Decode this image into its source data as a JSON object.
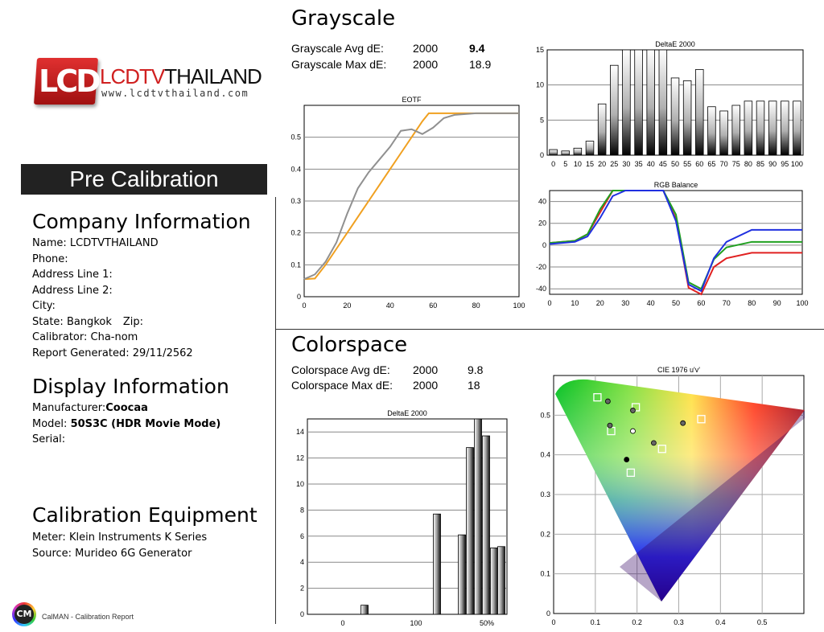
{
  "brand": {
    "logo_letters": "LCD",
    "name_part1": "LCDTV",
    "name_part2": "THAILAND",
    "url": "www.lcdtvthailand.com"
  },
  "banner": "Pre Calibration",
  "company": {
    "heading": "Company Information",
    "rows": [
      {
        "label": "Name:",
        "value": "LCDTVTHAILAND"
      },
      {
        "label": "Phone:",
        "value": ""
      },
      {
        "label": "Address Line 1:",
        "value": ""
      },
      {
        "label": "Address Line 2:",
        "value": ""
      },
      {
        "label": "City:",
        "value": ""
      },
      {
        "label": "State:",
        "value": "Bangkok",
        "label2": "Zip:",
        "value2": ""
      },
      {
        "label": "Calibrator:",
        "value": "Cha-nom"
      },
      {
        "label": "Report Generated:",
        "value": "29/11/2562"
      }
    ]
  },
  "display": {
    "heading": "Display Information",
    "manufacturer_label": "Manufacturer:",
    "manufacturer": "Coocaa",
    "model_label": "Model:",
    "model": "50S3C (HDR Movie Mode)",
    "serial_label": "Serial:",
    "serial": ""
  },
  "equipment": {
    "heading": "Calibration Equipment",
    "meter_label": "Meter:",
    "meter": "Klein Instruments K Series",
    "source_label": "Source:",
    "source": "Murideo 6G Generator"
  },
  "footer": {
    "logo_letters": "CM",
    "text": "CalMAN - Calibration Report"
  },
  "grayscale": {
    "heading": "Grayscale",
    "avg_label": "Grayscale Avg dE:",
    "avg_std": "2000",
    "avg_value": "9.4",
    "max_label": "Grayscale Max dE:",
    "max_std": "2000",
    "max_value": "18.9"
  },
  "colorspace": {
    "heading": "Colorspace",
    "avg_label": "Colorspace Avg dE:",
    "avg_std": "2000",
    "avg_value": "9.8",
    "max_label": "Colorspace Max dE:",
    "max_std": "2000",
    "max_value": "18"
  },
  "chart_data": [
    {
      "id": "eotf",
      "type": "line",
      "title": "EOTF",
      "xlim": [
        0,
        100
      ],
      "ylim": [
        0,
        0.6
      ],
      "xticks": [
        "0",
        "20",
        "40",
        "60",
        "80",
        "100"
      ],
      "yticks": [
        "0",
        "0.1",
        "0.2",
        "0.3",
        "0.4",
        "0.5"
      ],
      "series": [
        {
          "color": "#f0a020",
          "x": [
            0,
            5,
            10,
            15,
            20,
            25,
            30,
            35,
            40,
            45,
            50,
            55,
            58,
            60,
            65,
            70,
            80,
            90,
            100
          ],
          "y": [
            0.055,
            0.057,
            0.1,
            0.15,
            0.2,
            0.25,
            0.3,
            0.35,
            0.4,
            0.45,
            0.5,
            0.55,
            0.575,
            0.575,
            0.575,
            0.575,
            0.575,
            0.575,
            0.575
          ]
        },
        {
          "color": "#909090",
          "x": [
            0,
            5,
            10,
            15,
            20,
            25,
            30,
            35,
            40,
            45,
            50,
            55,
            60,
            65,
            70,
            80,
            90,
            100
          ],
          "y": [
            0.055,
            0.07,
            0.11,
            0.17,
            0.26,
            0.34,
            0.39,
            0.43,
            0.47,
            0.52,
            0.525,
            0.51,
            0.53,
            0.56,
            0.57,
            0.575,
            0.575,
            0.575
          ]
        }
      ]
    },
    {
      "id": "gray_de",
      "type": "bar",
      "title": "DeltaE 2000",
      "categories": [
        "0",
        "5",
        "10",
        "15",
        "20",
        "25",
        "30",
        "35",
        "40",
        "45",
        "50",
        "55",
        "60",
        "65",
        "70",
        "75",
        "80",
        "85",
        "90",
        "95",
        "100"
      ],
      "values": [
        0.8,
        0.6,
        1.0,
        2.0,
        7.3,
        12.8,
        15.0,
        15.0,
        15.0,
        15.0,
        11.0,
        10.6,
        12.2,
        6.9,
        6.3,
        7.1,
        7.7,
        7.7,
        7.7,
        7.7,
        7.7
      ],
      "ylim": [
        0,
        15
      ],
      "yticks": [
        "0",
        "5",
        "10",
        "15"
      ]
    },
    {
      "id": "rgb",
      "type": "line",
      "title": "RGB Balance",
      "xlim": [
        0,
        100
      ],
      "ylim": [
        -45,
        50
      ],
      "xticks": [
        "0",
        "10",
        "20",
        "30",
        "40",
        "50",
        "60",
        "70",
        "80",
        "90",
        "100"
      ],
      "yticks": [
        "-40",
        "-20",
        "0",
        "20",
        "40"
      ],
      "series": [
        {
          "color": "#e02020",
          "x": [
            0,
            10,
            15,
            20,
            25,
            30,
            40,
            45,
            50,
            55,
            60,
            65,
            70,
            80,
            90,
            100
          ],
          "y": [
            2,
            4,
            10,
            30,
            50,
            50,
            50,
            50,
            24,
            -39,
            -46,
            -20,
            -12,
            -7,
            -7,
            -7
          ]
        },
        {
          "color": "#20a020",
          "x": [
            0,
            10,
            15,
            20,
            25,
            30,
            40,
            45,
            50,
            55,
            60,
            65,
            70,
            80,
            90,
            100
          ],
          "y": [
            2,
            4,
            10,
            33,
            50,
            50,
            50,
            50,
            28,
            -34,
            -40,
            -13,
            -2,
            3,
            3,
            3
          ]
        },
        {
          "color": "#2030e0",
          "x": [
            0,
            10,
            15,
            20,
            25,
            30,
            40,
            45,
            50,
            55,
            60,
            65,
            70,
            80,
            90,
            100
          ],
          "y": [
            1,
            3,
            8,
            25,
            45,
            50,
            50,
            50,
            22,
            -36,
            -42,
            -12,
            3,
            14,
            14,
            14
          ]
        }
      ]
    },
    {
      "id": "color_de",
      "type": "bar",
      "title": "DeltaE 2000",
      "ylim": [
        0,
        15
      ],
      "yticks": [
        "0",
        "2",
        "4",
        "6",
        "8",
        "10",
        "12",
        "14"
      ],
      "xticks": [
        "0",
        "100",
        "50%"
      ],
      "values": [
        0.7,
        7.7,
        6.1,
        12.8,
        15.0,
        13.7,
        5.1,
        5.2
      ]
    },
    {
      "id": "cie",
      "type": "scatter",
      "title": "CIE 1976 u'v'",
      "xlim": [
        0,
        0.6
      ],
      "ylim": [
        0,
        0.6
      ],
      "xticks": [
        "0",
        "0.1",
        "0.2",
        "0.3",
        "0.4",
        "0.5"
      ],
      "yticks": [
        "0",
        "0.1",
        "0.2",
        "0.3",
        "0.4",
        "0.5"
      ],
      "targets": [
        [
          0.105,
          0.545
        ],
        [
          0.197,
          0.52
        ],
        [
          0.354,
          0.49
        ],
        [
          0.138,
          0.46
        ],
        [
          0.26,
          0.415
        ],
        [
          0.185,
          0.355
        ]
      ],
      "measured": [
        [
          0.13,
          0.535
        ],
        [
          0.19,
          0.512
        ],
        [
          0.31,
          0.48
        ],
        [
          0.135,
          0.474
        ],
        [
          0.19,
          0.46
        ],
        [
          0.24,
          0.43
        ],
        [
          0.175,
          0.388
        ]
      ]
    }
  ]
}
